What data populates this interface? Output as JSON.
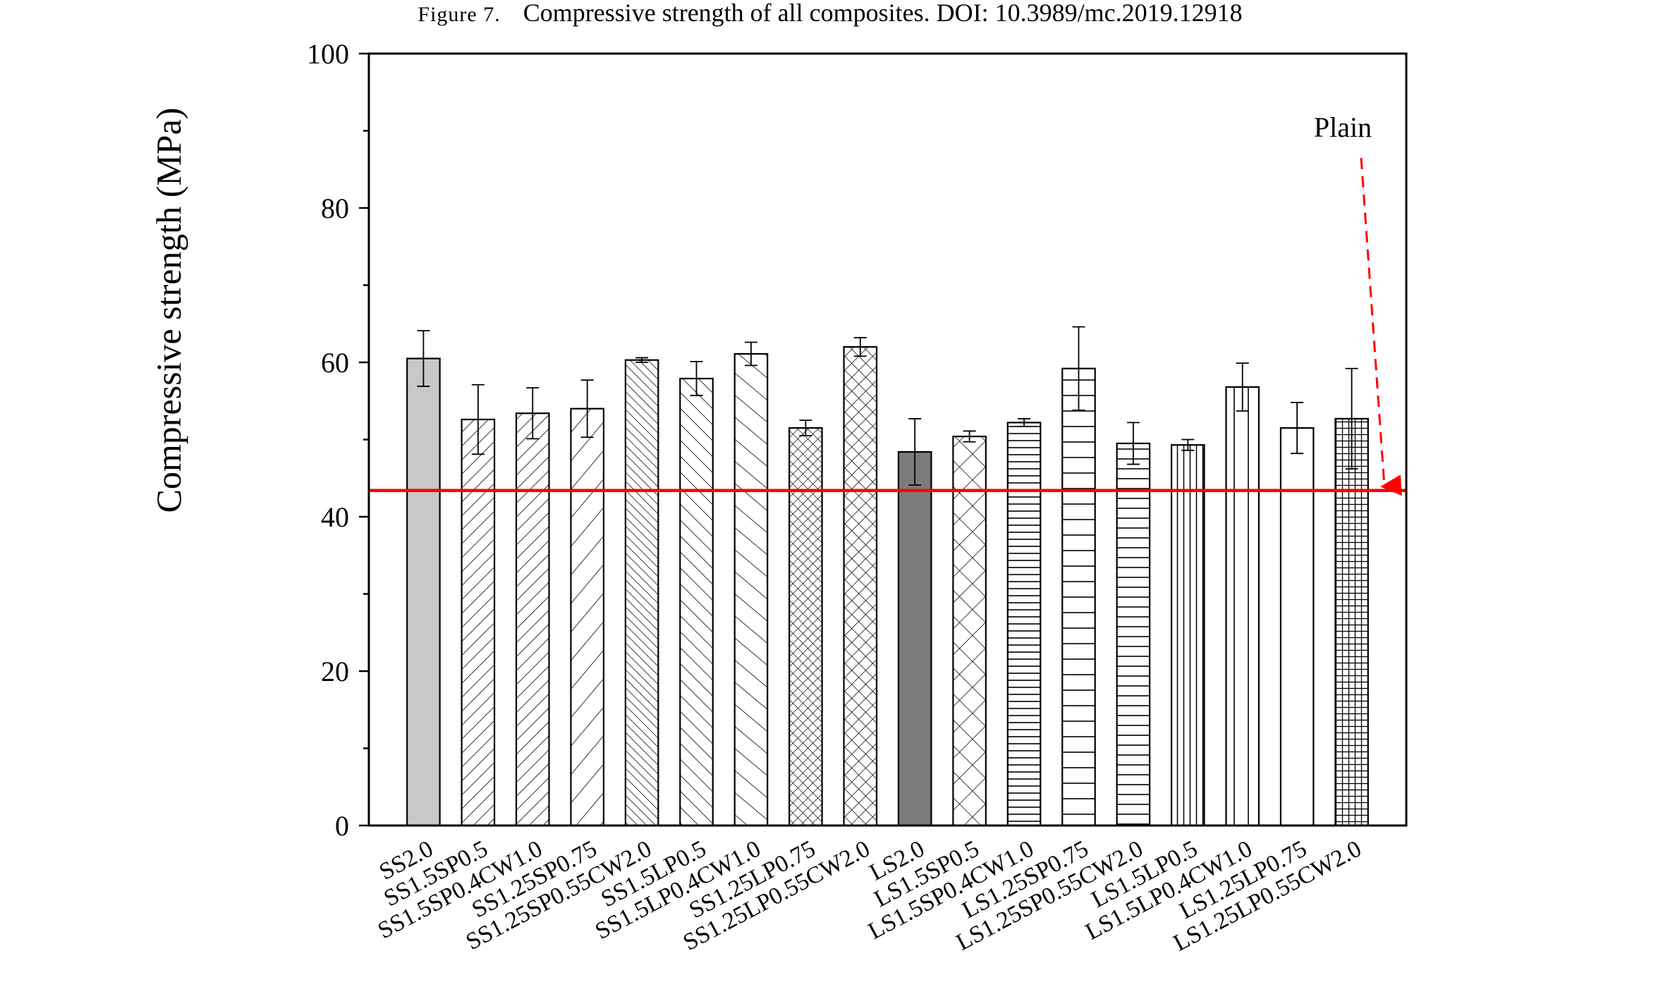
{
  "caption": {
    "label": "Figure 7.",
    "text": "Compressive strength of all composites. DOI: 10.3989/mc.2019.12918"
  },
  "chart_data": {
    "type": "bar",
    "title": "",
    "xlabel": "",
    "ylabel": "Compressive strength (MPa)",
    "ylim": [
      0,
      100
    ],
    "yticks": [
      0,
      20,
      40,
      60,
      80,
      100
    ],
    "grid": false,
    "categories": [
      "SS2.0",
      "SS1.5SP0.5",
      "SS1.5SP0.4CW1.0",
      "SS1.25SP0.75",
      "SS1.25SP0.55CW2.0",
      "SS1.5LP0.5",
      "SS1.5LP0.4CW1.0",
      "SS1.25LP0.75",
      "SS1.25LP0.55CW2.0",
      "LS2.0",
      "LS1.5SP0.5",
      "LS1.5SP0.4CW1.0",
      "LS1.25SP0.75",
      "LS1.25SP0.55CW2.0",
      "LS1.5LP0.5",
      "LS1.5LP0.4CW1.0",
      "LS1.25LP0.75",
      "LS1.25LP0.55CW2.0"
    ],
    "values": [
      60.5,
      52.6,
      53.4,
      54.0,
      60.3,
      57.9,
      61.1,
      51.5,
      62.0,
      48.4,
      50.4,
      52.2,
      59.2,
      49.5,
      49.3,
      56.8,
      51.5,
      52.7
    ],
    "errors": [
      3.6,
      4.5,
      3.3,
      3.7,
      0.3,
      2.2,
      1.5,
      1.0,
      1.2,
      4.3,
      0.7,
      0.5,
      5.4,
      2.7,
      0.7,
      3.1,
      3.3,
      6.5
    ],
    "fills": [
      "gray-light",
      "diag-fwd-dense",
      "diag-fwd-dense",
      "diag-fwd-sparse",
      "diag-back-dense",
      "diag-back",
      "diag-back-sparse",
      "crosshatch-dense",
      "crosshatch",
      "gray-dark",
      "crosshatch-sparse",
      "horizontal-dense",
      "horizontal-sparse",
      "horizontal",
      "vertical-dense",
      "vertical-sparse",
      "none",
      "grid"
    ],
    "reference_line": {
      "label": "Plain",
      "value": 43.4,
      "color": "#ff0000"
    }
  }
}
